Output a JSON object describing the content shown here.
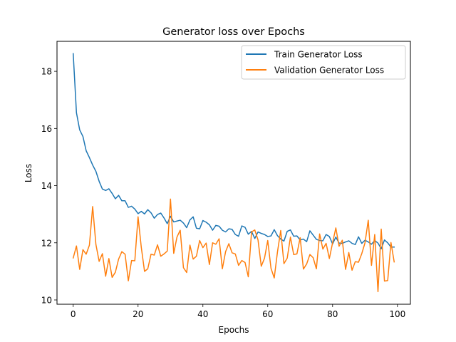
{
  "chart_data": {
    "type": "line",
    "title": "Generator loss over Epochs",
    "xlabel": "Epochs",
    "ylabel": "Loss",
    "xlim": [
      -5,
      104
    ],
    "ylim": [
      9.85,
      19.05
    ],
    "xticks": [
      0,
      20,
      40,
      60,
      80,
      100
    ],
    "yticks": [
      10,
      12,
      14,
      16,
      18
    ],
    "grid": false,
    "legend_position": "upper right",
    "x": [
      0,
      1,
      2,
      3,
      4,
      5,
      6,
      7,
      8,
      9,
      10,
      11,
      12,
      13,
      14,
      15,
      16,
      17,
      18,
      19,
      20,
      21,
      22,
      23,
      24,
      25,
      26,
      27,
      28,
      29,
      30,
      31,
      32,
      33,
      34,
      35,
      36,
      37,
      38,
      39,
      40,
      41,
      42,
      43,
      44,
      45,
      46,
      47,
      48,
      49,
      50,
      51,
      52,
      53,
      54,
      55,
      56,
      57,
      58,
      59,
      60,
      61,
      62,
      63,
      64,
      65,
      66,
      67,
      68,
      69,
      70,
      71,
      72,
      73,
      74,
      75,
      76,
      77,
      78,
      79,
      80,
      81,
      82,
      83,
      84,
      85,
      86,
      87,
      88,
      89,
      90,
      91,
      92,
      93,
      94,
      95,
      96,
      97,
      98,
      99
    ],
    "series": [
      {
        "name": "Train Generator Loss",
        "color": "#1f77b4",
        "values": [
          18.62,
          16.55,
          15.95,
          15.72,
          15.22,
          14.98,
          14.72,
          14.5,
          14.15,
          13.88,
          13.83,
          13.89,
          13.73,
          13.54,
          13.66,
          13.47,
          13.47,
          13.24,
          13.28,
          13.18,
          13.02,
          13.1,
          13.01,
          13.16,
          13.05,
          12.86,
          12.99,
          13.04,
          12.87,
          12.67,
          12.93,
          12.73,
          12.76,
          12.79,
          12.69,
          12.53,
          12.8,
          12.91,
          12.51,
          12.49,
          12.78,
          12.72,
          12.63,
          12.44,
          12.61,
          12.58,
          12.44,
          12.38,
          12.49,
          12.47,
          12.29,
          12.23,
          12.59,
          12.54,
          12.3,
          12.4,
          12.15,
          12.38,
          12.33,
          12.29,
          12.22,
          12.24,
          12.46,
          12.25,
          12.13,
          12.06,
          12.4,
          12.45,
          12.23,
          12.24,
          12.1,
          12.13,
          12.04,
          12.42,
          12.27,
          12.12,
          12.08,
          12.07,
          12.29,
          12.22,
          11.96,
          12.2,
          11.99,
          11.98,
          12.03,
          12.07,
          11.98,
          11.94,
          12.21,
          11.98,
          12.09,
          12.03,
          11.95,
          12.08,
          11.99,
          11.79,
          12.1,
          12.0,
          11.85,
          11.85
        ]
      },
      {
        "name": "Validation Generator Loss",
        "color": "#ff7f0e",
        "values": [
          11.47,
          11.89,
          11.07,
          11.76,
          11.6,
          11.92,
          13.27,
          11.94,
          11.35,
          11.62,
          10.83,
          11.45,
          10.79,
          10.97,
          11.43,
          11.69,
          11.6,
          10.67,
          11.38,
          11.37,
          12.91,
          11.84,
          11.0,
          11.09,
          11.6,
          11.57,
          11.93,
          11.53,
          11.61,
          11.71,
          13.53,
          11.63,
          12.2,
          12.44,
          11.13,
          10.96,
          11.92,
          11.43,
          11.53,
          12.08,
          11.83,
          11.99,
          11.24,
          12.0,
          11.95,
          12.14,
          11.09,
          11.69,
          11.97,
          11.65,
          11.61,
          11.21,
          11.38,
          11.31,
          10.81,
          12.38,
          12.45,
          12.1,
          11.18,
          11.46,
          12.08,
          11.11,
          10.77,
          11.68,
          12.43,
          11.27,
          11.46,
          12.2,
          11.59,
          11.61,
          12.18,
          11.08,
          11.26,
          11.59,
          11.48,
          11.09,
          12.31,
          11.78,
          11.98,
          11.45,
          12.0,
          12.52,
          11.88,
          12.09,
          11.07,
          11.66,
          11.04,
          11.34,
          11.32,
          11.62,
          12.0,
          12.79,
          11.21,
          12.29,
          10.29,
          12.48,
          10.66,
          10.68,
          12.01,
          11.33
        ]
      }
    ]
  }
}
